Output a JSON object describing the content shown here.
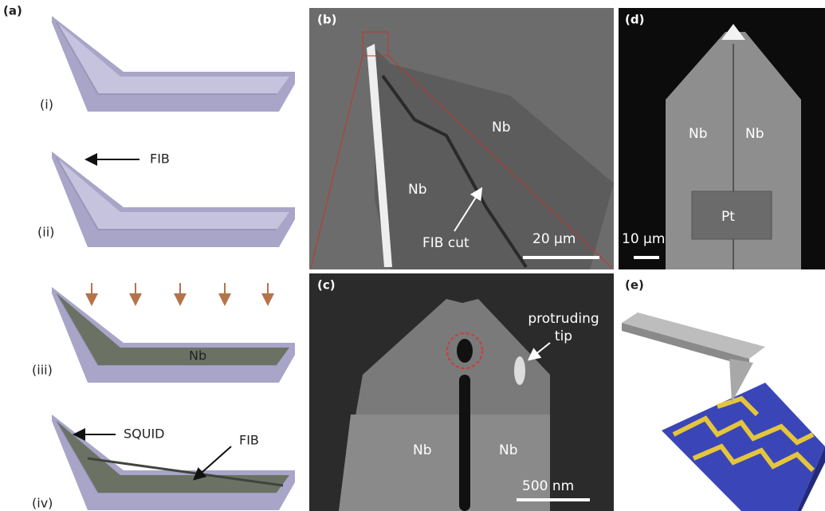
{
  "panels": {
    "a": {
      "label": "(a)",
      "steps": [
        "(i)",
        "(ii)",
        "(iii)",
        "(iv)"
      ],
      "fib_arrow": "FIB",
      "nb": "Nb",
      "squid": "SQUID",
      "fib_cut": "FIB"
    },
    "b": {
      "label": "(b)",
      "regions": [
        "Nb",
        "Nb"
      ],
      "cut": "FIB cut",
      "scale": "20 μm"
    },
    "c": {
      "label": "(c)",
      "tip": [
        "protruding",
        "tip"
      ],
      "regions": [
        "Nb",
        "Nb"
      ],
      "scale": "500 nm"
    },
    "d": {
      "label": "(d)",
      "regions": [
        "Nb",
        "Nb"
      ],
      "pad": "Pt",
      "scale": "10 μm"
    },
    "e": {
      "label": "(e)"
    }
  }
}
